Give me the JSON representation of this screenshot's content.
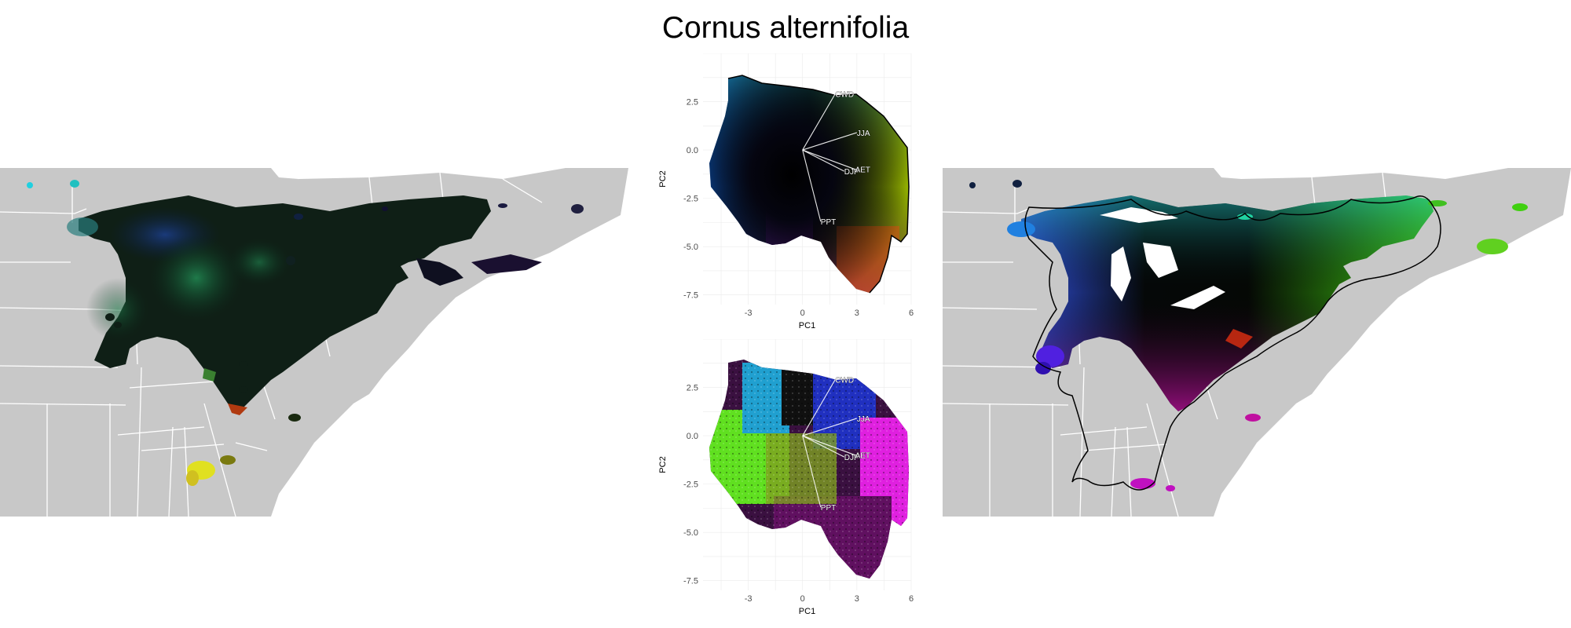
{
  "title": "Cornus alternifolia",
  "chart_data": [
    {
      "type": "scatter",
      "panel": "pca-top",
      "xlabel": "PC1",
      "ylabel": "PC2",
      "xlim": [
        -5.5,
        6
      ],
      "ylim": [
        -8,
        5
      ],
      "xticks": [
        -3,
        0,
        3,
        6
      ],
      "yticks": [
        2.5,
        0.0,
        -2.5,
        -5.0,
        -7.5
      ],
      "xtick_labels": [
        "-3",
        "0",
        "3",
        "6"
      ],
      "ytick_labels": [
        "2.5",
        "0.0",
        "-2.5",
        "-5.0",
        "-7.5"
      ],
      "grid": true,
      "loadings": [
        {
          "label": "CWD",
          "x": 1.8,
          "y": 2.9
        },
        {
          "label": "JJA",
          "x": 3.0,
          "y": 0.9
        },
        {
          "label": "DJF",
          "x": 2.3,
          "y": -1.1
        },
        {
          "label": "AET",
          "x": 2.9,
          "y": -1.0
        },
        {
          "label": "PPT",
          "x": 1.0,
          "y": -3.7
        }
      ]
    },
    {
      "type": "scatter",
      "panel": "pca-bottom",
      "xlabel": "PC1",
      "ylabel": "PC2",
      "xlim": [
        -5.5,
        6
      ],
      "ylim": [
        -8,
        5
      ],
      "xticks": [
        -3,
        0,
        3,
        6
      ],
      "yticks": [
        2.5,
        0.0,
        -2.5,
        -5.0,
        -7.5
      ],
      "xtick_labels": [
        "-3",
        "0",
        "3",
        "6"
      ],
      "ytick_labels": [
        "2.5",
        "0.0",
        "-2.5",
        "-5.0",
        "-7.5"
      ],
      "grid": true,
      "loadings": [
        {
          "label": "CWD",
          "x": 1.8,
          "y": 2.9
        },
        {
          "label": "JJA",
          "x": 3.0,
          "y": 0.9
        },
        {
          "label": "DJF",
          "x": 2.3,
          "y": -1.1
        },
        {
          "label": "AET",
          "x": 2.9,
          "y": -1.0
        },
        {
          "label": "PPT",
          "x": 1.0,
          "y": -3.7
        }
      ]
    }
  ],
  "colors": {
    "land": "#c8c8c8",
    "border": "#ffffff",
    "grid": "#ebebeb",
    "hull": "#000000"
  }
}
